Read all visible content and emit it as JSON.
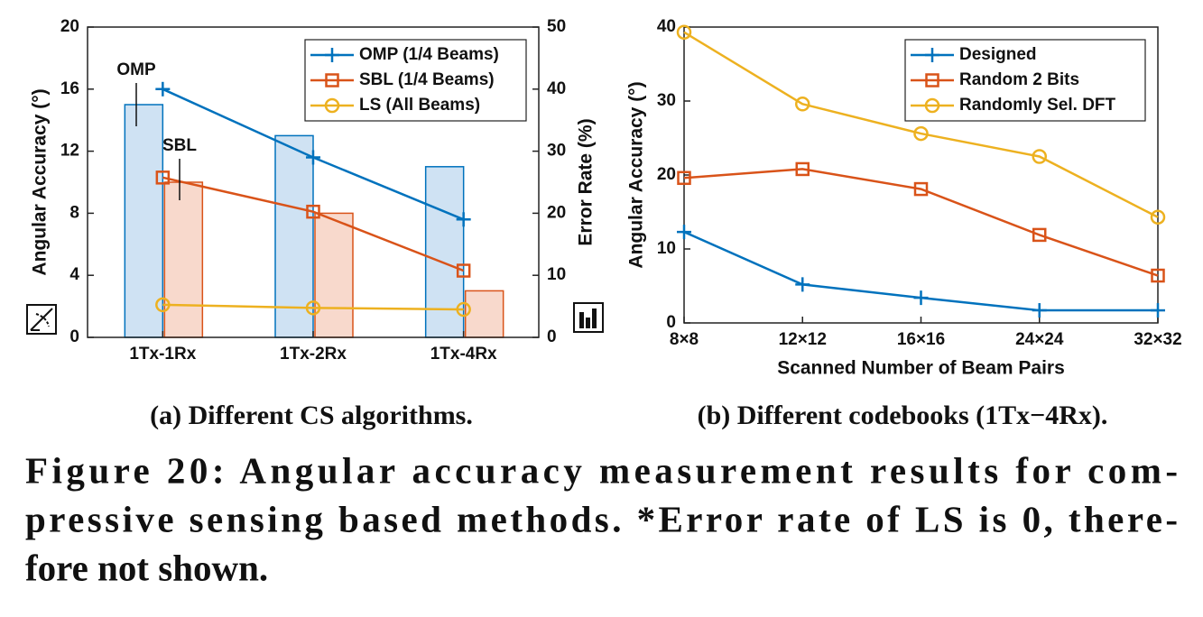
{
  "chart_data": [
    {
      "type": "combo",
      "caption": "(a) Different CS algorithms.",
      "ylabel": "Angular Accuracy (°)",
      "y2label": "Error Rate (%)",
      "categories": [
        "1Tx-1Rx",
        "1Tx-2Rx",
        "1Tx-4Rx"
      ],
      "ylim": [
        0,
        20
      ],
      "yticks": [
        0,
        4,
        8,
        12,
        16,
        20
      ],
      "y2lim": [
        0,
        50
      ],
      "y2ticks": [
        0,
        10,
        20,
        30,
        40,
        50
      ],
      "legend": "upper right",
      "series": [
        {
          "name": "OMP (1/4 Beams)",
          "color": "#0072BD",
          "marker": "plus",
          "values": [
            16,
            11.6,
            7.6
          ]
        },
        {
          "name": "SBL (1/4 Beams)",
          "color": "#D95319",
          "marker": "square",
          "values": [
            10.3,
            8.1,
            4.3
          ]
        },
        {
          "name": "LS (All Beams)",
          "color": "#EDB120",
          "marker": "circle",
          "values": [
            2.1,
            1.9,
            1.8
          ]
        },
        {
          "kind": "bar",
          "axis": "y2",
          "color": "#0072BD",
          "fill": "#cfe2f3",
          "values": [
            37.5,
            32.5,
            27.5
          ]
        },
        {
          "kind": "bar",
          "axis": "y2",
          "color": "#D95319",
          "fill": "#f8d9cc",
          "values": [
            25,
            20,
            7.5
          ]
        }
      ],
      "annotations": [
        "OMP",
        "SBL"
      ]
    },
    {
      "type": "line",
      "caption": "(b) Different codebooks (1Tx−4Rx).",
      "xlabel": "Scanned Number of Beam Pairs",
      "ylabel": "Angular Accuracy (°)",
      "categories": [
        "8×8",
        "12×12",
        "16×16",
        "24×24",
        "32×32"
      ],
      "ylim": [
        0,
        40
      ],
      "yticks": [
        0,
        10,
        20,
        30,
        40
      ],
      "legend": "upper right",
      "series": [
        {
          "name": "Designed",
          "color": "#0072BD",
          "marker": "plus",
          "values": [
            12.3,
            5.2,
            3.4,
            1.7,
            1.7
          ]
        },
        {
          "name": "Random 2 Bits",
          "color": "#D95319",
          "marker": "square",
          "values": [
            19.6,
            20.8,
            18.1,
            11.9,
            6.4
          ]
        },
        {
          "name": "Randomly Sel. DFT",
          "color": "#EDB120",
          "marker": "circle",
          "values": [
            39.3,
            29.6,
            25.6,
            22.5,
            14.3
          ]
        }
      ]
    }
  ],
  "figure_caption": [
    "Figure 20: Angular accuracy measurement results for com-",
    "pressive sensing based methods. *Error rate of LS is 0, there-",
    "fore not shown."
  ]
}
